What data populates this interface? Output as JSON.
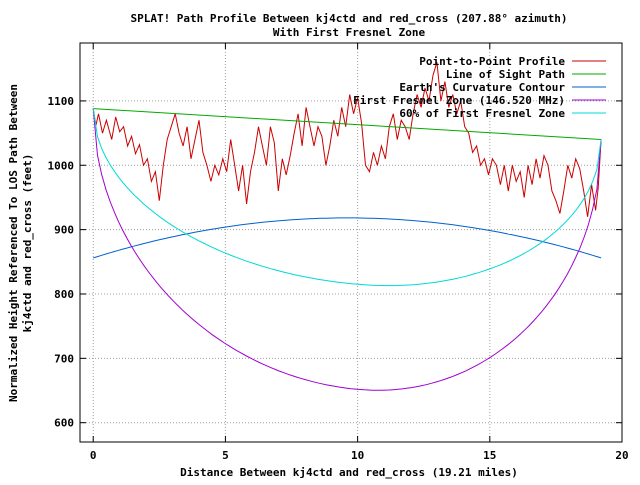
{
  "chart_data": {
    "type": "line",
    "title": [
      "SPLAT! Path Profile Between kj4ctd and red_cross (207.88° azimuth)",
      "With First Fresnel Zone"
    ],
    "xlabel": "Distance Between kj4ctd and red_cross (19.21 miles)",
    "ylabel": [
      "Normalized Height Referenced To LOS Path Between",
      "kj4ctd and red_cross (feet)"
    ],
    "xlim": [
      -0.5,
      20
    ],
    "ylim": [
      570,
      1190
    ],
    "xticks": [
      0,
      5,
      10,
      15,
      20
    ],
    "yticks": [
      600,
      700,
      800,
      900,
      1000,
      1100
    ],
    "grid": true,
    "legend_position": "top-right",
    "series": [
      {
        "name": "Point-to-Point Profile",
        "color": "#cc0000",
        "x": [
          0,
          0.1,
          0.2,
          0.35,
          0.5,
          0.7,
          0.85,
          1.0,
          1.15,
          1.3,
          1.45,
          1.6,
          1.75,
          1.9,
          2.05,
          2.2,
          2.35,
          2.5,
          2.65,
          2.8,
          2.95,
          3.1,
          3.25,
          3.4,
          3.55,
          3.7,
          3.85,
          4.0,
          4.15,
          4.3,
          4.45,
          4.6,
          4.75,
          4.9,
          5.05,
          5.2,
          5.35,
          5.5,
          5.65,
          5.8,
          5.95,
          6.1,
          6.25,
          6.4,
          6.55,
          6.7,
          6.85,
          7.0,
          7.15,
          7.3,
          7.45,
          7.6,
          7.75,
          7.9,
          8.05,
          8.2,
          8.35,
          8.5,
          8.65,
          8.8,
          8.95,
          9.1,
          9.25,
          9.4,
          9.55,
          9.7,
          9.85,
          10.0,
          10.15,
          10.3,
          10.45,
          10.6,
          10.75,
          10.9,
          11.05,
          11.2,
          11.35,
          11.5,
          11.65,
          11.8,
          11.95,
          12.1,
          12.25,
          12.4,
          12.55,
          12.7,
          12.85,
          13.0,
          13.15,
          13.3,
          13.45,
          13.6,
          13.75,
          13.9,
          14.05,
          14.2,
          14.35,
          14.5,
          14.65,
          14.8,
          14.95,
          15.1,
          15.25,
          15.4,
          15.55,
          15.7,
          15.85,
          16.0,
          16.15,
          16.3,
          16.45,
          16.6,
          16.75,
          16.9,
          17.05,
          17.2,
          17.35,
          17.5,
          17.65,
          17.8,
          17.95,
          18.1,
          18.25,
          18.4,
          18.55,
          18.7,
          18.85,
          19.0,
          19.1,
          19.21
        ],
        "y": [
          1088,
          1062,
          1080,
          1050,
          1070,
          1040,
          1075,
          1052,
          1060,
          1030,
          1045,
          1018,
          1032,
          1000,
          1010,
          975,
          990,
          945,
          1000,
          1040,
          1060,
          1080,
          1050,
          1030,
          1060,
          1010,
          1040,
          1070,
          1020,
          1000,
          975,
          1000,
          985,
          1010,
          990,
          1040,
          1000,
          960,
          1000,
          940,
          990,
          1020,
          1060,
          1030,
          1000,
          1060,
          1035,
          960,
          1010,
          985,
          1015,
          1050,
          1080,
          1030,
          1090,
          1060,
          1030,
          1060,
          1045,
          1000,
          1030,
          1070,
          1045,
          1090,
          1060,
          1110,
          1080,
          1105,
          1065,
          1000,
          990,
          1020,
          1000,
          1030,
          1010,
          1060,
          1080,
          1040,
          1070,
          1060,
          1040,
          1080,
          1110,
          1090,
          1120,
          1100,
          1140,
          1160,
          1100,
          1130,
          1090,
          1110,
          1080,
          1100,
          1060,
          1050,
          1020,
          1030,
          1000,
          1010,
          985,
          1010,
          1000,
          970,
          1000,
          960,
          1000,
          975,
          990,
          950,
          1000,
          970,
          1010,
          980,
          1015,
          1000,
          960,
          945,
          925,
          960,
          1000,
          980,
          1010,
          995,
          960,
          920,
          970,
          930,
          965,
          1040
        ]
      },
      {
        "name": "Line of Sight Path",
        "color": "#00aa00",
        "x": [
          0,
          19.21
        ],
        "y": [
          1088,
          1040
        ]
      },
      {
        "name": "Earth's Curvature Contour",
        "color": "#0060d0",
        "curve": "parabola",
        "x": [
          0,
          10.2,
          19.21
        ],
        "y": [
          856,
          918,
          856
        ]
      },
      {
        "name": "First Fresnel Zone (146.520 MHz)",
        "color": "#a000d0",
        "curve": "ellipse",
        "x": [
          0,
          10.3,
          19.21
        ],
        "y": [
          1088,
          651,
          1040
        ]
      },
      {
        "name": "60% of First Fresnel Zone",
        "color": "#00d8d8",
        "curve": "ellipse",
        "x": [
          0,
          10.4,
          19.21
        ],
        "y": [
          1088,
          814,
          1040
        ]
      }
    ]
  }
}
